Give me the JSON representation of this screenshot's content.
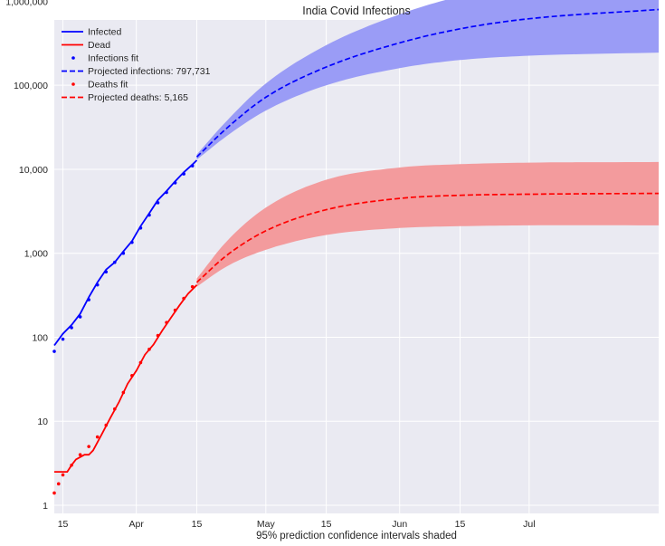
{
  "chart_data": {
    "type": "line",
    "title": "India Covid Infections",
    "xlabel": "95% prediction confidence intervals shaded",
    "ylabel": "",
    "y_scale": "log",
    "ylim": [
      0.8,
      600000
    ],
    "xlim": [
      "2020-03-13",
      "2020-07-31"
    ],
    "grid": true,
    "legend_position": "top-left",
    "x_ticks": [
      {
        "date": "2020-03-15",
        "label": "15"
      },
      {
        "date": "2020-04-01",
        "label": "Apr"
      },
      {
        "date": "2020-04-15",
        "label": "15"
      },
      {
        "date": "2020-05-01",
        "label": "May"
      },
      {
        "date": "2020-05-15",
        "label": "15"
      },
      {
        "date": "2020-06-01",
        "label": "Jun"
      },
      {
        "date": "2020-06-15",
        "label": "15"
      },
      {
        "date": "2020-07-01",
        "label": "Jul"
      }
    ],
    "y_ticks": [
      {
        "value": 1,
        "label": "1"
      },
      {
        "value": 10,
        "label": "10"
      },
      {
        "value": 100,
        "label": "100"
      },
      {
        "value": 1000,
        "label": "1,000"
      },
      {
        "value": 10000,
        "label": "10,000"
      },
      {
        "value": 100000,
        "label": "100,000"
      },
      {
        "value": 1000000,
        "label": "1,000,000"
      }
    ],
    "colors": {
      "infected": "#0000ff",
      "dead": "#ff0000",
      "infected_band": "#9a9cf6",
      "dead_band": "#f39b9d",
      "background": "#eaeaf2",
      "grid": "#ffffff"
    },
    "series": [
      {
        "name": "Infected",
        "kind": "line",
        "color": "#0000ff",
        "x": [
          "2020-03-13",
          "2020-03-15",
          "2020-03-17",
          "2020-03-19",
          "2020-03-21",
          "2020-03-23",
          "2020-03-25",
          "2020-03-27",
          "2020-03-29",
          "2020-03-31",
          "2020-04-02",
          "2020-04-04",
          "2020-04-06",
          "2020-04-08",
          "2020-04-10",
          "2020-04-12",
          "2020-04-14",
          "2020-04-15"
        ],
        "y": [
          80,
          110,
          140,
          190,
          300,
          450,
          640,
          780,
          1050,
          1400,
          2100,
          3000,
          4300,
          5500,
          7200,
          9200,
          11400,
          12800
        ]
      },
      {
        "name": "Dead",
        "kind": "line",
        "color": "#ff0000",
        "x": [
          "2020-03-13",
          "2020-03-16",
          "2020-03-17",
          "2020-03-18",
          "2020-03-20",
          "2020-03-21",
          "2020-03-22",
          "2020-03-24",
          "2020-03-26",
          "2020-03-28",
          "2020-03-30",
          "2020-04-01",
          "2020-04-03",
          "2020-04-05",
          "2020-04-07",
          "2020-04-09",
          "2020-04-11",
          "2020-04-13",
          "2020-04-15"
        ],
        "y": [
          2.5,
          2.5,
          3,
          3.5,
          4,
          4,
          4.5,
          7,
          11,
          17,
          28,
          40,
          62,
          82,
          120,
          170,
          240,
          330,
          420
        ]
      },
      {
        "name": "Infections fit",
        "kind": "dots",
        "color": "#0000ff",
        "x": [
          "2020-03-13",
          "2020-03-15",
          "2020-03-17",
          "2020-03-19",
          "2020-03-21",
          "2020-03-23",
          "2020-03-25",
          "2020-03-27",
          "2020-03-29",
          "2020-03-31",
          "2020-04-02",
          "2020-04-04",
          "2020-04-06",
          "2020-04-08",
          "2020-04-10",
          "2020-04-12",
          "2020-04-14"
        ],
        "y": [
          68,
          95,
          130,
          175,
          280,
          420,
          600,
          780,
          1000,
          1350,
          2000,
          2850,
          4000,
          5300,
          6900,
          8800,
          11000
        ]
      },
      {
        "name": "Projected infections: 797,731",
        "kind": "dashed",
        "color": "#0000ff",
        "x": [
          "2020-04-15",
          "2020-04-22",
          "2020-05-01",
          "2020-05-15",
          "2020-06-01",
          "2020-06-15",
          "2020-07-01",
          "2020-07-31"
        ],
        "y": [
          14000,
          31000,
          72000,
          165000,
          320000,
          470000,
          620000,
          797731
        ]
      },
      {
        "name": "Deaths fit",
        "kind": "dots",
        "color": "#ff0000",
        "x": [
          "2020-03-13",
          "2020-03-14",
          "2020-03-15",
          "2020-03-17",
          "2020-03-19",
          "2020-03-21",
          "2020-03-23",
          "2020-03-25",
          "2020-03-27",
          "2020-03-29",
          "2020-03-31",
          "2020-04-02",
          "2020-04-04",
          "2020-04-06",
          "2020-04-08",
          "2020-04-10",
          "2020-04-12",
          "2020-04-14"
        ],
        "y": [
          1.4,
          1.8,
          2.3,
          3,
          4,
          5,
          6.5,
          9,
          14,
          22,
          35,
          50,
          72,
          105,
          150,
          210,
          290,
          400
        ]
      },
      {
        "name": "Projected deaths: 5,165",
        "kind": "dashed",
        "color": "#ff0000",
        "x": [
          "2020-04-15",
          "2020-04-22",
          "2020-05-01",
          "2020-05-15",
          "2020-06-01",
          "2020-06-15",
          "2020-07-01",
          "2020-07-31"
        ],
        "y": [
          450,
          950,
          1850,
          3300,
          4500,
          4900,
          5050,
          5165
        ]
      }
    ],
    "bands": [
      {
        "series": "Projected infections: 797,731",
        "color": "#9a9cf6",
        "x": [
          "2020-04-15",
          "2020-04-22",
          "2020-05-01",
          "2020-05-15",
          "2020-06-01",
          "2020-06-15",
          "2020-07-01",
          "2020-07-31"
        ],
        "lower": [
          13000,
          25000,
          50000,
          100000,
          160000,
          200000,
          225000,
          245000
        ],
        "upper": [
          15000,
          38000,
          105000,
          300000,
          700000,
          1150000,
          1650000,
          2500000
        ]
      },
      {
        "series": "Projected deaths: 5,165",
        "color": "#f39b9d",
        "x": [
          "2020-04-15",
          "2020-04-22",
          "2020-05-01",
          "2020-05-15",
          "2020-06-01",
          "2020-06-15",
          "2020-07-01",
          "2020-07-31"
        ],
        "lower": [
          400,
          700,
          1100,
          1650,
          2000,
          2100,
          2150,
          2150
        ],
        "upper": [
          500,
          1400,
          3500,
          7500,
          10500,
          11500,
          12000,
          12200
        ]
      }
    ]
  }
}
